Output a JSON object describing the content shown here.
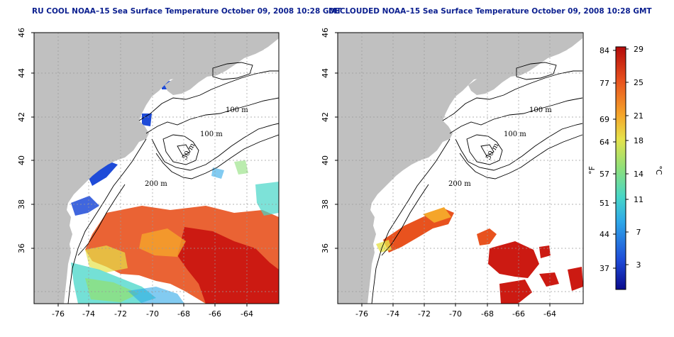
{
  "titles": {
    "left": "RU COOL NOAA–15 Sea Surface Temperature October 09, 2008 10:28 GMT",
    "right": "DECLOUDED NOAA–15 Sea Surface Temperature October 09, 2008 10:28 GMT"
  },
  "map_axes": {
    "lat_ticks": [
      "46",
      "44",
      "42",
      "40",
      "38",
      "36"
    ],
    "lon_ticks": [
      "-76",
      "-74",
      "-72",
      "-70",
      "-68",
      "-66",
      "-64"
    ]
  },
  "contour_labels": {
    "m100_a": "100 m",
    "m100_b": "100 m",
    "m50_a": "50 m",
    "m50_b": "50 m",
    "m200": "200 m"
  },
  "colorbar": {
    "unit_f": "°F",
    "unit_c": "°C",
    "f_ticks": [
      "84",
      "77",
      "69",
      "64",
      "57",
      "51",
      "44",
      "37"
    ],
    "c_ticks": [
      "29",
      "25",
      "21",
      "18",
      "14",
      "11",
      "7",
      "3"
    ]
  },
  "colors": {
    "land": "#c0c0c0",
    "title": "#0b1f8f",
    "gridline": "#9a9a9a",
    "scale": [
      "#0a0a8c",
      "#1e4bd8",
      "#2ea8e8",
      "#46d6c8",
      "#8ee07a",
      "#e6e24a",
      "#f5a52a",
      "#e8521e",
      "#b40a0a"
    ]
  }
}
